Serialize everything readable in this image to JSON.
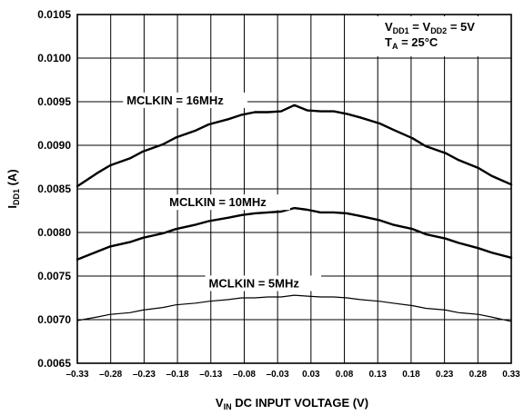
{
  "chart_data": {
    "type": "line",
    "x_range": [
      -0.33,
      0.33
    ],
    "ylim": [
      0.0065,
      0.0105
    ],
    "yticks": [
      "0.0065",
      "0.0070",
      "0.0075",
      "0.0080",
      "0.0085",
      "0.0090",
      "0.0095",
      "0.0100",
      "0.0105"
    ],
    "xticks": [
      "–0.33",
      "–0.28",
      "–0.23",
      "–0.18",
      "–0.13",
      "–0.08",
      "–0.03",
      "0.03",
      "0.08",
      "0.13",
      "0.18",
      "0.23",
      "0.28",
      "0.33"
    ],
    "xlabel": {
      "main": "V",
      "sub": "IN",
      "rest": " DC INPUT VOLTAGE (V)"
    },
    "ylabel": {
      "main": "I",
      "sub": "DD1",
      "rest": " (A)"
    },
    "conditions": {
      "line1": {
        "a": "V",
        "a_sub": "DD1",
        "b": " = V",
        "b_sub": "DD2",
        "c": " = 5V"
      },
      "line2": {
        "a": "T",
        "a_sub": "A",
        "b": " = 25°C"
      }
    },
    "grid": true,
    "series": [
      {
        "name": "MCLKIN = 16MHz",
        "stroke": 2.4,
        "x": [
          -0.33,
          -0.3,
          -0.28,
          -0.25,
          -0.23,
          -0.2,
          -0.18,
          -0.15,
          -0.13,
          -0.1,
          -0.08,
          -0.06,
          -0.04,
          -0.02,
          0.0,
          0.02,
          0.04,
          0.06,
          0.08,
          0.1,
          0.13,
          0.15,
          0.18,
          0.2,
          0.23,
          0.25,
          0.28,
          0.3,
          0.33
        ],
        "y": [
          0.00853,
          0.00868,
          0.00877,
          0.00885,
          0.00893,
          0.00901,
          0.00909,
          0.00917,
          0.00924,
          0.0093,
          0.00935,
          0.00938,
          0.00938,
          0.00939,
          0.00946,
          0.0094,
          0.00939,
          0.00939,
          0.00936,
          0.00932,
          0.00925,
          0.00918,
          0.00908,
          0.00899,
          0.00891,
          0.00883,
          0.00874,
          0.00865,
          0.00855
        ]
      },
      {
        "name": "MCLKIN = 10MHz",
        "stroke": 2.4,
        "x": [
          -0.33,
          -0.3,
          -0.28,
          -0.25,
          -0.23,
          -0.2,
          -0.18,
          -0.15,
          -0.13,
          -0.1,
          -0.08,
          -0.06,
          -0.04,
          -0.02,
          0.0,
          0.02,
          0.04,
          0.06,
          0.08,
          0.1,
          0.13,
          0.15,
          0.18,
          0.2,
          0.23,
          0.25,
          0.28,
          0.3,
          0.33
        ],
        "y": [
          0.00769,
          0.00778,
          0.00784,
          0.00789,
          0.00794,
          0.00799,
          0.00804,
          0.00809,
          0.00813,
          0.00817,
          0.0082,
          0.00822,
          0.00823,
          0.00824,
          0.00828,
          0.00826,
          0.00823,
          0.00823,
          0.00822,
          0.00819,
          0.00814,
          0.00809,
          0.00804,
          0.00798,
          0.00793,
          0.00788,
          0.00782,
          0.00777,
          0.00771
        ]
      },
      {
        "name": "MCLKIN = 5MHz",
        "stroke": 1.2,
        "x": [
          -0.33,
          -0.3,
          -0.28,
          -0.25,
          -0.23,
          -0.2,
          -0.18,
          -0.15,
          -0.13,
          -0.1,
          -0.08,
          -0.06,
          -0.04,
          -0.02,
          0.0,
          0.02,
          0.04,
          0.06,
          0.08,
          0.1,
          0.13,
          0.15,
          0.18,
          0.2,
          0.23,
          0.25,
          0.28,
          0.3,
          0.33
        ],
        "y": [
          0.00699,
          0.00703,
          0.00706,
          0.00708,
          0.00711,
          0.00714,
          0.00717,
          0.00719,
          0.00721,
          0.00723,
          0.00725,
          0.00725,
          0.00726,
          0.00726,
          0.00728,
          0.00727,
          0.00726,
          0.00726,
          0.00725,
          0.00723,
          0.00721,
          0.00719,
          0.00716,
          0.00713,
          0.00711,
          0.00708,
          0.00706,
          0.00703,
          0.00698
        ]
      }
    ],
    "annotations": [
      {
        "text": "MCLKIN = 16MHz",
        "x": -0.255,
        "y": 0.00947
      },
      {
        "text": "MCLKIN = 10MHz",
        "x": -0.19,
        "y": 0.0083
      },
      {
        "text": "MCLKIN = 5MHz",
        "x": -0.13,
        "y": 0.00737
      }
    ]
  }
}
